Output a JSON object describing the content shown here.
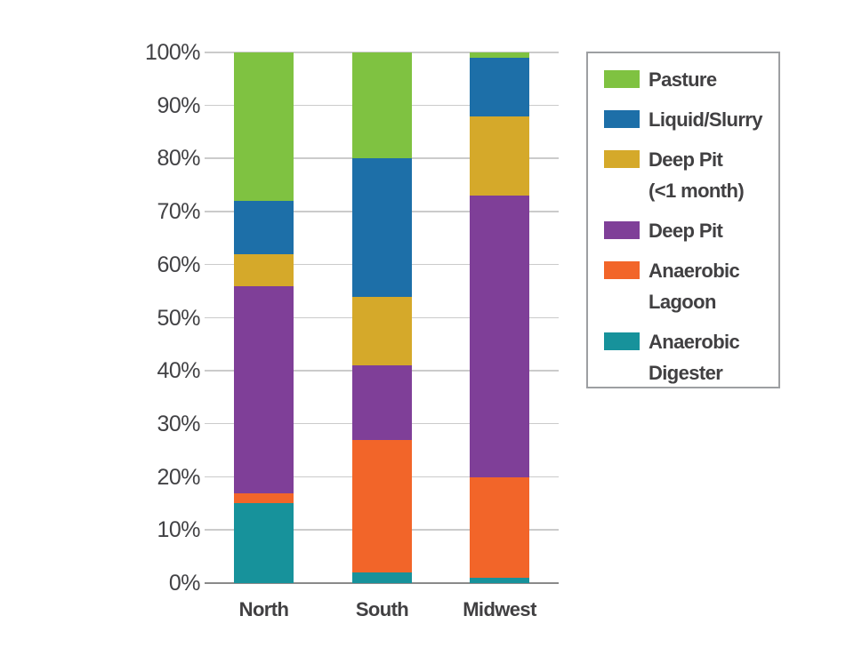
{
  "chart_data": {
    "type": "bar",
    "stacked": true,
    "title": "",
    "xlabel": "",
    "ylabel": "",
    "categories": [
      "North",
      "South",
      "Midwest"
    ],
    "series": [
      {
        "name": "Anaerobic Digester",
        "color": "#17929b",
        "values": [
          15,
          2,
          1
        ]
      },
      {
        "name": "Anaerobic Lagoon",
        "color": "#f26529",
        "values": [
          2,
          25,
          19
        ]
      },
      {
        "name": "Deep Pit",
        "color": "#7f3f98",
        "values": [
          39,
          14,
          53
        ]
      },
      {
        "name": "Deep Pit (<1 month)",
        "color": "#d5a92a",
        "values": [
          6,
          13,
          15
        ]
      },
      {
        "name": "Liquid/Slurry",
        "color": "#1d6fa8",
        "values": [
          10,
          26,
          11
        ]
      },
      {
        "name": "Pasture",
        "color": "#7fc241",
        "values": [
          28,
          20,
          1
        ]
      }
    ],
    "ylim": [
      0,
      100
    ],
    "ytick_step": 10,
    "ytick_suffix": "%",
    "grid": true,
    "legend_position": "right",
    "legend": [
      {
        "lines": [
          "Pasture"
        ],
        "color": "#7fc241"
      },
      {
        "lines": [
          "Liquid/Slurry"
        ],
        "color": "#1d6fa8"
      },
      {
        "lines": [
          "Deep Pit",
          "(<1 month)"
        ],
        "color": "#d5a92a"
      },
      {
        "lines": [
          "Deep Pit"
        ],
        "color": "#7f3f98"
      },
      {
        "lines": [
          "Anaerobic",
          "Lagoon"
        ],
        "color": "#f26529"
      },
      {
        "lines": [
          "Anaerobic",
          "Digester"
        ],
        "color": "#17929b"
      }
    ]
  },
  "colors": {
    "grid": "#cbcbcb",
    "axis": "#8a8a8a",
    "text": "#414042",
    "legend_border": "#9d9fa2",
    "background": "#ffffff"
  }
}
